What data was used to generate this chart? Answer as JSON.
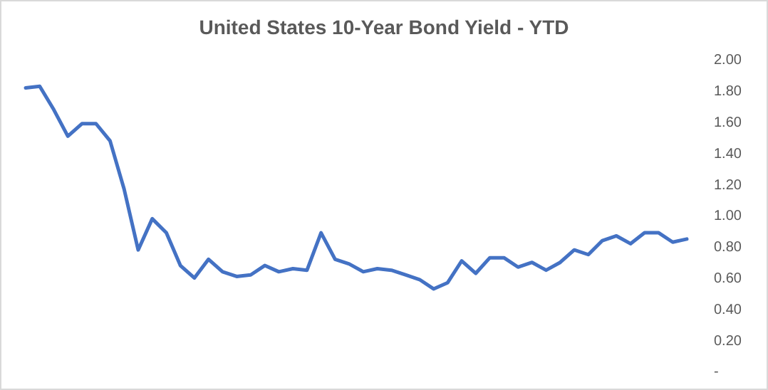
{
  "chart_data": {
    "type": "line",
    "title": "United States 10-Year Bond Yield - YTD",
    "categories": [
      null,
      null,
      null,
      null,
      null,
      null,
      null,
      null,
      null,
      null,
      null,
      null,
      null,
      null,
      null,
      null,
      null,
      null,
      null,
      null,
      null,
      null,
      null,
      null,
      null,
      null,
      null,
      null,
      null,
      null,
      null,
      null,
      null,
      null,
      null,
      null,
      null,
      null,
      null,
      null,
      null,
      null,
      null,
      null,
      null,
      null,
      null,
      null
    ],
    "series": [
      {
        "color": "#4472c4",
        "values": [
          1.82,
          1.83,
          1.68,
          1.51,
          1.59,
          1.59,
          1.48,
          1.17,
          0.78,
          0.98,
          0.89,
          0.68,
          0.6,
          0.72,
          0.64,
          0.61,
          0.62,
          0.68,
          0.64,
          0.66,
          0.65,
          0.89,
          0.72,
          0.69,
          0.64,
          0.66,
          0.65,
          0.62,
          0.59,
          0.53,
          0.57,
          0.71,
          0.63,
          0.73,
          0.73,
          0.67,
          0.7,
          0.65,
          0.7,
          0.78,
          0.75,
          0.84,
          0.87,
          0.82,
          0.89,
          0.89,
          0.83,
          0.85
        ]
      }
    ],
    "ylim": [
      0,
      2
    ],
    "yticks": [
      {
        "value": 0,
        "label": "-"
      },
      {
        "value": 0.2,
        "label": "0.20"
      },
      {
        "value": 0.4,
        "label": "0.40"
      },
      {
        "value": 0.6,
        "label": "0.60"
      },
      {
        "value": 0.8,
        "label": "0.80"
      },
      {
        "value": 1,
        "label": "1.00"
      },
      {
        "value": 1.2,
        "label": "1.20"
      },
      {
        "value": 1.4,
        "label": "1.40"
      },
      {
        "value": 1.6,
        "label": "1.60"
      },
      {
        "value": 1.8,
        "label": "1.80"
      },
      {
        "value": 2,
        "label": "2.00"
      }
    ],
    "tick_labels": "y"
  }
}
